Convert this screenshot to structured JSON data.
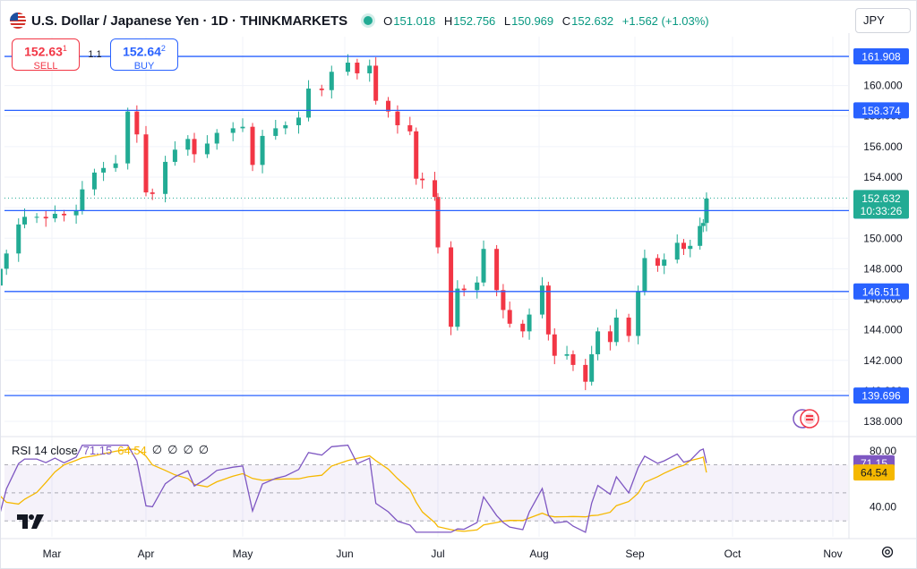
{
  "header": {
    "title": "U.S. Dollar / Japanese Yen · 1D · THINKMARKETS",
    "ohlc": [
      {
        "k": "O",
        "v": "151.018"
      },
      {
        "k": "H",
        "v": "152.756"
      },
      {
        "k": "L",
        "v": "150.969"
      },
      {
        "k": "C",
        "v": "152.632"
      },
      {
        "k": "",
        "v": "+1.562 (+1.03%)"
      }
    ],
    "currency": "JPY"
  },
  "trade": {
    "sell_price": "152.63",
    "sell_sup": "1",
    "sell_label": "SELL",
    "spread": "1.1",
    "buy_price": "152.64",
    "buy_sup": "2",
    "buy_label": "BUY"
  },
  "rsi_legend": {
    "name": "RSI 14 close",
    "rsi": "71.15",
    "ma": "64.54",
    "extras": [
      "∅",
      "∅",
      "∅",
      "∅"
    ]
  },
  "colors": {
    "up": "#22ab94",
    "down": "#f23645",
    "hline": "#2962ff",
    "rsi": "#7e57c2",
    "rsi_ma": "#f5b800"
  },
  "icons": [
    "us-flag-icon",
    "live-dot-icon",
    "tradingview-logo-icon",
    "gear-icon",
    "watchlist-flag-icon"
  ],
  "chart_data": {
    "type": "candlestick",
    "symbol": "USDJPY",
    "interval": "1D",
    "ylim": [
      137.3,
      163.2
    ],
    "y_ticks": [
      138.0,
      140.0,
      142.0,
      144.0,
      146.0,
      148.0,
      150.0,
      152.0,
      154.0,
      156.0,
      158.0,
      160.0
    ],
    "x_ticks": [
      "Mar",
      "Apr",
      "May",
      "Jun",
      "Jul",
      "Aug",
      "Sep",
      "Oct",
      "Nov"
    ],
    "horizontal_levels": [
      161.908,
      158.374,
      151.811,
      146.511,
      139.696
    ],
    "last_price": {
      "value": "152.632",
      "countdown": "10:33:26"
    },
    "close_series": [
      {
        "date": "Feb 16",
        "close": 150.1
      },
      {
        "date": "Feb 20",
        "close": 150.3
      },
      {
        "date": "Feb 23",
        "close": 150.5
      },
      {
        "date": "Feb 27",
        "close": 150.4
      },
      {
        "date": "Mar 01",
        "close": 150.1
      },
      {
        "date": "Mar 05",
        "close": 149.9
      },
      {
        "date": "Mar 08",
        "close": 147.2
      },
      {
        "date": "Mar 11",
        "close": 146.9
      },
      {
        "date": "Mar 13",
        "close": 148.0
      },
      {
        "date": "Mar 15",
        "close": 149.0
      },
      {
        "date": "Mar 19",
        "close": 150.9
      },
      {
        "date": "Mar 21",
        "close": 151.4
      },
      {
        "date": "Mar 25",
        "close": 151.4
      },
      {
        "date": "Mar 28",
        "close": 151.3
      },
      {
        "date": "Apr 02",
        "close": 151.6
      },
      {
        "date": "Apr 05",
        "close": 151.5
      },
      {
        "date": "Apr 09",
        "close": 151.8
      },
      {
        "date": "Apr 11",
        "close": 153.2
      },
      {
        "date": "Apr 15",
        "close": 154.3
      },
      {
        "date": "Apr 18",
        "close": 154.6
      },
      {
        "date": "Apr 22",
        "close": 154.9
      },
      {
        "date": "Apr 26",
        "close": 158.3
      },
      {
        "date": "Apr 29",
        "close": 156.8
      },
      {
        "date": "May 01",
        "close": 153.0
      },
      {
        "date": "May 03",
        "close": 152.9
      },
      {
        "date": "May 07",
        "close": 155.0
      },
      {
        "date": "May 10",
        "close": 155.8
      },
      {
        "date": "May 14",
        "close": 156.5
      },
      {
        "date": "May 16",
        "close": 155.5
      },
      {
        "date": "May 20",
        "close": 156.2
      },
      {
        "date": "May 23",
        "close": 156.9
      },
      {
        "date": "May 28",
        "close": 157.2
      },
      {
        "date": "May 31",
        "close": 157.3
      },
      {
        "date": "Jun 04",
        "close": 154.8
      },
      {
        "date": "Jun 07",
        "close": 156.7
      },
      {
        "date": "Jun 11",
        "close": 157.2
      },
      {
        "date": "Jun 14",
        "close": 157.4
      },
      {
        "date": "Jun 18",
        "close": 157.9
      },
      {
        "date": "Jun 21",
        "close": 159.8
      },
      {
        "date": "Jun 25",
        "close": 159.7
      },
      {
        "date": "Jun 28",
        "close": 160.9
      },
      {
        "date": "Jul 02",
        "close": 161.5
      },
      {
        "date": "Jul 05",
        "close": 160.8
      },
      {
        "date": "Jul 09",
        "close": 161.3
      },
      {
        "date": "Jul 11",
        "close": 159.0
      },
      {
        "date": "Jul 15",
        "close": 158.3
      },
      {
        "date": "Jul 18",
        "close": 157.4
      },
      {
        "date": "Jul 22",
        "close": 157.0
      },
      {
        "date": "Jul 24",
        "close": 153.9
      },
      {
        "date": "Jul 26",
        "close": 153.8
      },
      {
        "date": "Jul 30",
        "close": 152.7
      },
      {
        "date": "Aug 01",
        "close": 149.4
      },
      {
        "date": "Aug 05",
        "close": 144.2
      },
      {
        "date": "Aug 07",
        "close": 146.7
      },
      {
        "date": "Aug 09",
        "close": 146.6
      },
      {
        "date": "Aug 13",
        "close": 147.1
      },
      {
        "date": "Aug 15",
        "close": 149.3
      },
      {
        "date": "Aug 19",
        "close": 146.6
      },
      {
        "date": "Aug 21",
        "close": 145.3
      },
      {
        "date": "Aug 23",
        "close": 144.4
      },
      {
        "date": "Aug 27",
        "close": 143.9
      },
      {
        "date": "Aug 29",
        "close": 145.0
      },
      {
        "date": "Sep 02",
        "close": 146.9
      },
      {
        "date": "Sep 04",
        "close": 143.7
      },
      {
        "date": "Sep 06",
        "close": 142.3
      },
      {
        "date": "Sep 10",
        "close": 142.4
      },
      {
        "date": "Sep 12",
        "close": 141.7
      },
      {
        "date": "Sep 16",
        "close": 140.6
      },
      {
        "date": "Sep 18",
        "close": 142.4
      },
      {
        "date": "Sep 20",
        "close": 143.9
      },
      {
        "date": "Sep 24",
        "close": 143.2
      },
      {
        "date": "Sep 26",
        "close": 144.8
      },
      {
        "date": "Sep 30",
        "close": 143.6
      },
      {
        "date": "Oct 02",
        "close": 146.5
      },
      {
        "date": "Oct 04",
        "close": 148.7
      },
      {
        "date": "Oct 08",
        "close": 148.2
      },
      {
        "date": "Oct 10",
        "close": 148.6
      },
      {
        "date": "Oct 14",
        "close": 149.7
      },
      {
        "date": "Oct 16",
        "close": 149.3
      },
      {
        "date": "Oct 18",
        "close": 149.5
      },
      {
        "date": "Oct 21",
        "close": 150.8
      },
      {
        "date": "Oct 22",
        "close": 151.0
      },
      {
        "date": "Oct 23",
        "close": 152.6
      }
    ],
    "rsi": {
      "ylim": [
        20,
        85
      ],
      "y_ticks": [
        40.0,
        80.0
      ],
      "overbought": 70,
      "oversold": 30,
      "series": [
        {
          "name": "RSI 14 close",
          "last": 71.15
        },
        {
          "name": "RSI-based MA",
          "last": 64.54
        }
      ]
    }
  }
}
